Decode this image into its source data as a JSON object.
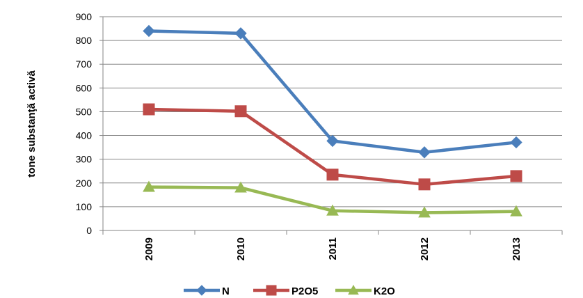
{
  "chart_data": {
    "type": "line",
    "ylabel": "tone substanţă activă",
    "categories": [
      "2009",
      "2010",
      "2011",
      "2012",
      "2013"
    ],
    "ylim": [
      0,
      900
    ],
    "y_ticks": [
      0,
      100,
      200,
      300,
      400,
      500,
      600,
      700,
      800,
      900
    ],
    "grid": true,
    "legend": "bottom",
    "series": [
      {
        "name": "N",
        "color": "#4a7ebb",
        "marker": "diamond",
        "values": [
          840,
          830,
          377,
          329,
          371
        ]
      },
      {
        "name": "P2O5",
        "color": "#be4b48",
        "marker": "square",
        "values": [
          510,
          502,
          235,
          194,
          229
        ]
      },
      {
        "name": "K2O",
        "color": "#98b954",
        "marker": "triangle",
        "values": [
          183,
          180,
          83,
          75,
          80
        ]
      }
    ]
  }
}
